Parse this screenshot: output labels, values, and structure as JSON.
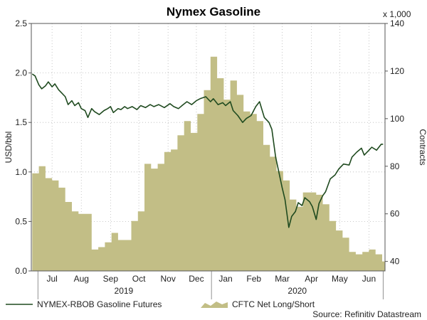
{
  "chart_data": {
    "type": "area",
    "title": "Nymex Gasoline",
    "y_left": {
      "label": "USD/bbl",
      "range": [
        0,
        2.5
      ],
      "ticks": [
        "0.0",
        "0.5",
        "1.0",
        "1.5",
        "2.0",
        "2.5"
      ]
    },
    "y_right": {
      "label": "Contracts",
      "unit_note": "x 1,000",
      "range": [
        36,
        140
      ],
      "ticks": [
        "40",
        "60",
        "80",
        "100",
        "120",
        "140"
      ]
    },
    "x_axis": {
      "range": [
        "2019-06-24",
        "2020-07-03"
      ],
      "months": [
        {
          "label": "Jul",
          "date": "2019-07-16"
        },
        {
          "label": "Aug",
          "date": "2019-08-16"
        },
        {
          "label": "Sep",
          "date": "2019-09-16"
        },
        {
          "label": "Oct",
          "date": "2019-10-16"
        },
        {
          "label": "Nov",
          "date": "2019-11-16"
        },
        {
          "label": "Dec",
          "date": "2019-12-16"
        },
        {
          "label": "Jan",
          "date": "2020-01-16"
        },
        {
          "label": "Feb",
          "date": "2020-02-15"
        },
        {
          "label": "Mar",
          "date": "2020-03-16"
        },
        {
          "label": "Apr",
          "date": "2020-04-16"
        },
        {
          "label": "May",
          "date": "2020-05-16"
        },
        {
          "label": "Jun",
          "date": "2020-06-16"
        }
      ],
      "year_dividers": [
        "2019-07-01",
        "2020-01-01",
        "2020-07-01"
      ],
      "years": [
        {
          "label": "2019",
          "date": "2019-09-30"
        },
        {
          "label": "2020",
          "date": "2020-04-01"
        }
      ]
    },
    "grid": true,
    "series": [
      {
        "name": "NYMEX-RBOB Gasoline Futures",
        "axis": "left",
        "type": "line",
        "color": "#1f4a1f",
        "points": [
          [
            "2019-06-25",
            1.99
          ],
          [
            "2019-06-28",
            1.97
          ],
          [
            "2019-07-02",
            1.88
          ],
          [
            "2019-07-05",
            1.84
          ],
          [
            "2019-07-09",
            1.87
          ],
          [
            "2019-07-12",
            1.91
          ],
          [
            "2019-07-16",
            1.86
          ],
          [
            "2019-07-19",
            1.89
          ],
          [
            "2019-07-23",
            1.83
          ],
          [
            "2019-07-26",
            1.8
          ],
          [
            "2019-07-30",
            1.76
          ],
          [
            "2019-08-02",
            1.68
          ],
          [
            "2019-08-06",
            1.72
          ],
          [
            "2019-08-09",
            1.67
          ],
          [
            "2019-08-13",
            1.7
          ],
          [
            "2019-08-16",
            1.64
          ],
          [
            "2019-08-20",
            1.62
          ],
          [
            "2019-08-23",
            1.55
          ],
          [
            "2019-08-27",
            1.64
          ],
          [
            "2019-08-30",
            1.61
          ],
          [
            "2019-09-04",
            1.58
          ],
          [
            "2019-09-09",
            1.62
          ],
          [
            "2019-09-13",
            1.64
          ],
          [
            "2019-09-16",
            1.66
          ],
          [
            "2019-09-19",
            1.6
          ],
          [
            "2019-09-24",
            1.64
          ],
          [
            "2019-09-27",
            1.63
          ],
          [
            "2019-10-01",
            1.66
          ],
          [
            "2019-10-04",
            1.64
          ],
          [
            "2019-10-09",
            1.66
          ],
          [
            "2019-10-14",
            1.63
          ],
          [
            "2019-10-18",
            1.67
          ],
          [
            "2019-10-23",
            1.65
          ],
          [
            "2019-10-28",
            1.68
          ],
          [
            "2019-11-01",
            1.66
          ],
          [
            "2019-11-06",
            1.68
          ],
          [
            "2019-11-12",
            1.65
          ],
          [
            "2019-11-18",
            1.69
          ],
          [
            "2019-11-22",
            1.66
          ],
          [
            "2019-11-27",
            1.64
          ],
          [
            "2019-12-02",
            1.68
          ],
          [
            "2019-12-06",
            1.71
          ],
          [
            "2019-12-11",
            1.68
          ],
          [
            "2019-12-16",
            1.72
          ],
          [
            "2019-12-20",
            1.74
          ],
          [
            "2019-12-26",
            1.76
          ],
          [
            "2019-12-31",
            1.71
          ],
          [
            "2020-01-03",
            1.74
          ],
          [
            "2020-01-08",
            1.68
          ],
          [
            "2020-01-13",
            1.7
          ],
          [
            "2020-01-16",
            1.67
          ],
          [
            "2020-01-21",
            1.71
          ],
          [
            "2020-01-24",
            1.62
          ],
          [
            "2020-01-29",
            1.57
          ],
          [
            "2020-02-03",
            1.5
          ],
          [
            "2020-02-07",
            1.54
          ],
          [
            "2020-02-12",
            1.57
          ],
          [
            "2020-02-17",
            1.66
          ],
          [
            "2020-02-21",
            1.71
          ],
          [
            "2020-02-26",
            1.55
          ],
          [
            "2020-03-02",
            1.5
          ],
          [
            "2020-03-05",
            1.43
          ],
          [
            "2020-03-09",
            1.15
          ],
          [
            "2020-03-12",
            1.02
          ],
          [
            "2020-03-16",
            0.84
          ],
          [
            "2020-03-19",
            0.72
          ],
          [
            "2020-03-23",
            0.44
          ],
          [
            "2020-03-26",
            0.55
          ],
          [
            "2020-03-30",
            0.6
          ],
          [
            "2020-04-02",
            0.69
          ],
          [
            "2020-04-06",
            0.66
          ],
          [
            "2020-04-09",
            0.74
          ],
          [
            "2020-04-14",
            0.7
          ],
          [
            "2020-04-17",
            0.65
          ],
          [
            "2020-04-21",
            0.52
          ],
          [
            "2020-04-24",
            0.68
          ],
          [
            "2020-04-28",
            0.76
          ],
          [
            "2020-05-01",
            0.8
          ],
          [
            "2020-05-06",
            0.93
          ],
          [
            "2020-05-11",
            0.97
          ],
          [
            "2020-05-15",
            1.03
          ],
          [
            "2020-05-20",
            1.08
          ],
          [
            "2020-05-26",
            1.07
          ],
          [
            "2020-05-29",
            1.15
          ],
          [
            "2020-06-03",
            1.2
          ],
          [
            "2020-06-08",
            1.24
          ],
          [
            "2020-06-11",
            1.17
          ],
          [
            "2020-06-16",
            1.22
          ],
          [
            "2020-06-19",
            1.25
          ],
          [
            "2020-06-24",
            1.22
          ],
          [
            "2020-06-29",
            1.28
          ],
          [
            "2020-07-01",
            1.28
          ]
        ]
      },
      {
        "name": "CFTC Net Long/Short",
        "axis": "right",
        "type": "step-area",
        "color": "#c2be86",
        "points": [
          [
            "2019-06-25",
            77
          ],
          [
            "2019-07-02",
            80
          ],
          [
            "2019-07-09",
            75
          ],
          [
            "2019-07-16",
            74
          ],
          [
            "2019-07-23",
            71
          ],
          [
            "2019-07-30",
            65
          ],
          [
            "2019-08-06",
            61
          ],
          [
            "2019-08-13",
            60
          ],
          [
            "2019-08-20",
            60
          ],
          [
            "2019-08-27",
            45
          ],
          [
            "2019-09-03",
            46
          ],
          [
            "2019-09-10",
            48
          ],
          [
            "2019-09-17",
            52
          ],
          [
            "2019-09-24",
            49
          ],
          [
            "2019-10-01",
            49
          ],
          [
            "2019-10-08",
            57
          ],
          [
            "2019-10-15",
            61
          ],
          [
            "2019-10-22",
            81
          ],
          [
            "2019-10-29",
            79
          ],
          [
            "2019-11-05",
            81
          ],
          [
            "2019-11-12",
            86
          ],
          [
            "2019-11-19",
            87
          ],
          [
            "2019-11-26",
            93
          ],
          [
            "2019-12-03",
            99
          ],
          [
            "2019-12-10",
            94
          ],
          [
            "2019-12-17",
            102
          ],
          [
            "2019-12-24",
            112
          ],
          [
            "2019-12-31",
            126
          ],
          [
            "2020-01-07",
            117
          ],
          [
            "2020-01-14",
            108
          ],
          [
            "2020-01-21",
            116
          ],
          [
            "2020-01-28",
            110
          ],
          [
            "2020-02-04",
            103
          ],
          [
            "2020-02-11",
            102
          ],
          [
            "2020-02-18",
            99
          ],
          [
            "2020-02-25",
            89
          ],
          [
            "2020-03-03",
            84
          ],
          [
            "2020-03-10",
            78
          ],
          [
            "2020-03-17",
            74
          ],
          [
            "2020-03-24",
            66
          ],
          [
            "2020-03-31",
            63
          ],
          [
            "2020-04-07",
            69
          ],
          [
            "2020-04-14",
            69
          ],
          [
            "2020-04-21",
            68
          ],
          [
            "2020-04-28",
            64
          ],
          [
            "2020-05-05",
            57
          ],
          [
            "2020-05-12",
            53
          ],
          [
            "2020-05-19",
            50
          ],
          [
            "2020-05-26",
            44
          ],
          [
            "2020-06-02",
            43
          ],
          [
            "2020-06-09",
            44
          ],
          [
            "2020-06-16",
            45
          ],
          [
            "2020-06-23",
            43
          ],
          [
            "2020-06-30",
            40
          ]
        ]
      }
    ],
    "source": "Source: Refinitiv Datastream"
  }
}
